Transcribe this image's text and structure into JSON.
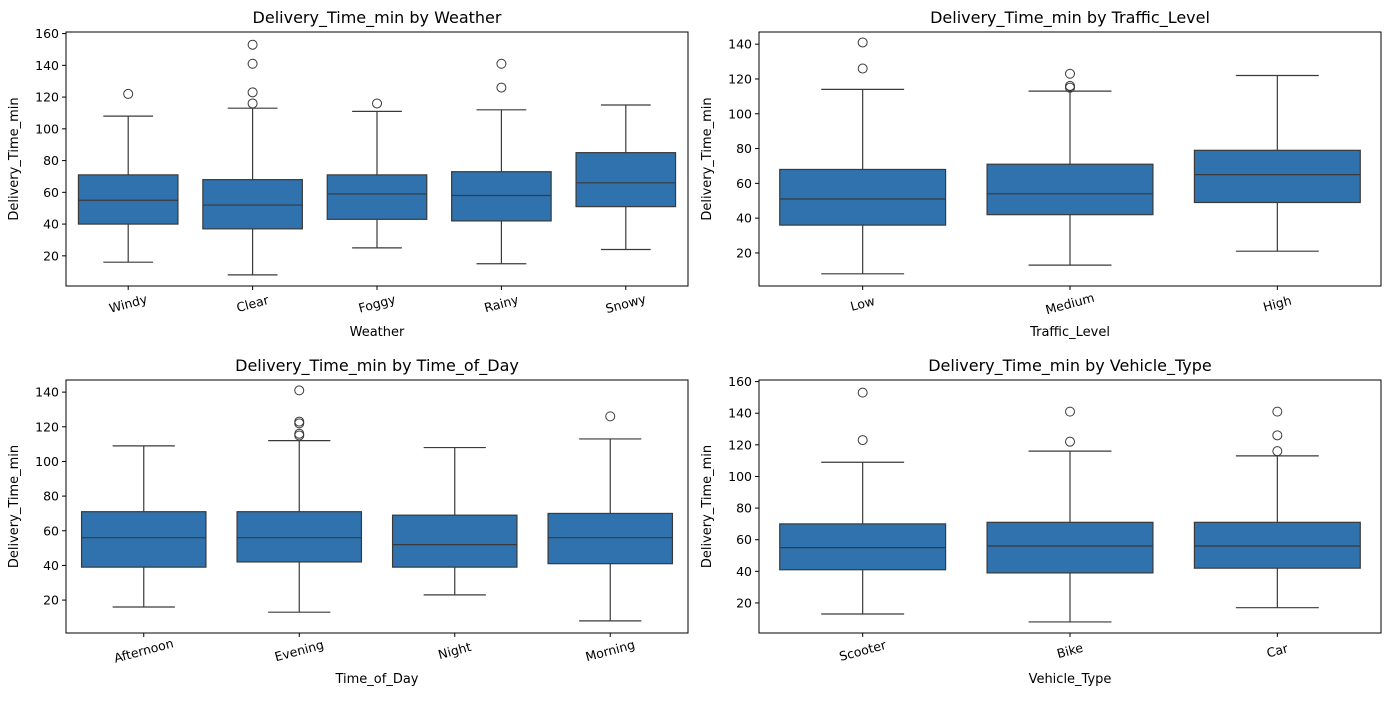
{
  "chart_data": [
    {
      "type": "box",
      "title": "Delivery_Time_min by Weather",
      "xlabel": "Weather",
      "ylabel": "Delivery_Time_min",
      "ylim": [
        1,
        161
      ],
      "yticks": [
        20,
        40,
        60,
        80,
        100,
        120,
        140,
        160
      ],
      "categories": [
        "Windy",
        "Clear",
        "Foggy",
        "Rainy",
        "Snowy"
      ],
      "boxes": [
        {
          "whislo": 16,
          "q1": 40,
          "med": 55,
          "q3": 71,
          "whishi": 108,
          "fliers": [
            122
          ]
        },
        {
          "whislo": 8,
          "q1": 37,
          "med": 52,
          "q3": 68,
          "whishi": 113,
          "fliers": [
            116,
            123,
            141,
            153
          ]
        },
        {
          "whislo": 25,
          "q1": 43,
          "med": 59,
          "q3": 71,
          "whishi": 111,
          "fliers": [
            116
          ]
        },
        {
          "whislo": 15,
          "q1": 42,
          "med": 58,
          "q3": 73,
          "whishi": 112,
          "fliers": [
            126,
            141
          ]
        },
        {
          "whislo": 24,
          "q1": 51,
          "med": 66,
          "q3": 85,
          "whishi": 115,
          "fliers": []
        }
      ]
    },
    {
      "type": "box",
      "title": "Delivery_Time_min by Traffic_Level",
      "xlabel": "Traffic_Level",
      "ylabel": "Delivery_Time_min",
      "ylim": [
        1,
        147
      ],
      "yticks": [
        20,
        40,
        60,
        80,
        100,
        120,
        140
      ],
      "categories": [
        "Low",
        "Medium",
        "High"
      ],
      "boxes": [
        {
          "whislo": 8,
          "q1": 36,
          "med": 51,
          "q3": 68,
          "whishi": 114,
          "fliers": [
            126,
            141
          ]
        },
        {
          "whislo": 13,
          "q1": 42,
          "med": 54,
          "q3": 71,
          "whishi": 113,
          "fliers": [
            115,
            116,
            123
          ]
        },
        {
          "whislo": 21,
          "q1": 49,
          "med": 65,
          "q3": 79,
          "whishi": 122,
          "fliers": []
        }
      ]
    },
    {
      "type": "box",
      "title": "Delivery_Time_min by Time_of_Day",
      "xlabel": "Time_of_Day",
      "ylabel": "Delivery_Time_min",
      "ylim": [
        1,
        147
      ],
      "yticks": [
        20,
        40,
        60,
        80,
        100,
        120,
        140
      ],
      "categories": [
        "Afternoon",
        "Evening",
        "Night",
        "Morning"
      ],
      "boxes": [
        {
          "whislo": 16,
          "q1": 39,
          "med": 56,
          "q3": 71,
          "whishi": 109,
          "fliers": []
        },
        {
          "whislo": 13,
          "q1": 42,
          "med": 56,
          "q3": 71,
          "whishi": 112,
          "fliers": [
            115,
            116,
            122,
            123,
            141
          ]
        },
        {
          "whislo": 23,
          "q1": 39,
          "med": 52,
          "q3": 69,
          "whishi": 108,
          "fliers": []
        },
        {
          "whislo": 8,
          "q1": 41,
          "med": 56,
          "q3": 70,
          "whishi": 113,
          "fliers": [
            126
          ]
        }
      ]
    },
    {
      "type": "box",
      "title": "Delivery_Time_min by Vehicle_Type",
      "xlabel": "Vehicle_Type",
      "ylabel": "Delivery_Time_min",
      "ylim": [
        1,
        161
      ],
      "yticks": [
        20,
        40,
        60,
        80,
        100,
        120,
        140,
        160
      ],
      "categories": [
        "Scooter",
        "Bike",
        "Car"
      ],
      "boxes": [
        {
          "whislo": 13,
          "q1": 41,
          "med": 55,
          "q3": 70,
          "whishi": 109,
          "fliers": [
            123,
            153
          ]
        },
        {
          "whislo": 8,
          "q1": 39,
          "med": 56,
          "q3": 71,
          "whishi": 116,
          "fliers": [
            122,
            141
          ]
        },
        {
          "whislo": 17,
          "q1": 42,
          "med": 56,
          "q3": 71,
          "whishi": 113,
          "fliers": [
            116,
            126,
            141
          ]
        }
      ]
    }
  ],
  "colors": {
    "box_fill": "#2f72ad",
    "line": "#3a3a3a"
  }
}
